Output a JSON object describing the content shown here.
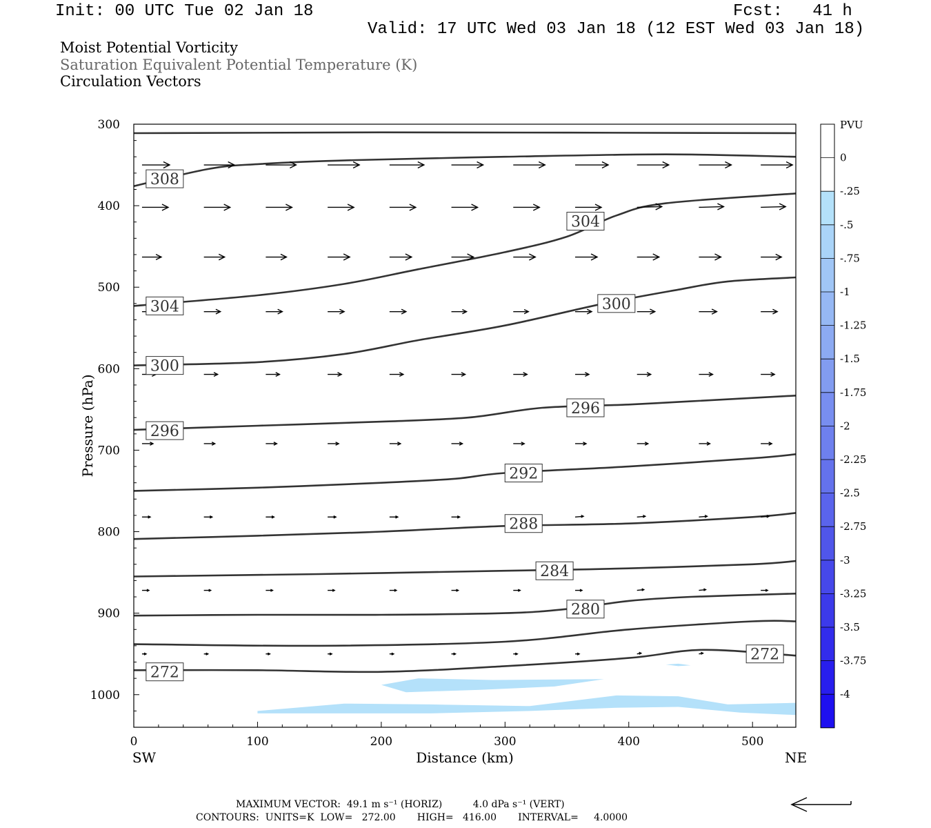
{
  "header": {
    "init": "Init: 00 UTC Tue 02 Jan 18",
    "fcst": "Fcst:   41 h",
    "valid": "Valid: 17 UTC Wed 03 Jan 18 (12 EST Wed 03 Jan 18)"
  },
  "titles": {
    "line1": "Moist Potential Vorticity",
    "line2": "Saturation Equivalent Potential Temperature (K)",
    "line3": "Circulation Vectors"
  },
  "chart_data": {
    "type": "cross-section",
    "xlabel": "Distance (km)",
    "ylabel": "Pressure (hPa)",
    "x_end_labels": {
      "left": "SW",
      "right": "NE"
    },
    "xlim": [
      0,
      535
    ],
    "ylim": [
      300,
      1040
    ],
    "x_ticks": [
      0,
      100,
      200,
      300,
      400,
      500
    ],
    "y_ticks": [
      300,
      400,
      500,
      600,
      700,
      800,
      900,
      1000
    ],
    "colorbar": {
      "unit": "PVU",
      "labels": [
        "0",
        "-.25",
        "-.5",
        "-.75",
        "-1",
        "-1.25",
        "-1.5",
        "-1.75",
        "-2",
        "-2.25",
        "-2.5",
        "-2.75",
        "-3",
        "-3.25",
        "-3.5",
        "-3.75",
        "-4"
      ],
      "colors": [
        "#ffffff",
        "#ffffff",
        "#b4e1fa",
        "#aad4f8",
        "#a0c6f6",
        "#96b8f4",
        "#8caaf2",
        "#829cf0",
        "#788ef0",
        "#6e80ee",
        "#6472ec",
        "#5a64ec",
        "#5056ea",
        "#4648ea",
        "#3c3aea",
        "#322cec",
        "#281eee",
        "#1e10f0"
      ]
    },
    "theta_es_contours": [
      {
        "value": 272,
        "points": [
          [
            0,
            970
          ],
          [
            100,
            970
          ],
          [
            200,
            972
          ],
          [
            300,
            965
          ],
          [
            400,
            955
          ],
          [
            460,
            945
          ],
          [
            535,
            952
          ]
        ],
        "labels": [
          [
            25,
            972
          ],
          [
            510,
            950
          ]
        ]
      },
      {
        "value": 276,
        "points": [
          [
            0,
            938
          ],
          [
            150,
            940
          ],
          [
            300,
            935
          ],
          [
            400,
            920
          ],
          [
            500,
            910
          ],
          [
            535,
            910
          ]
        ],
        "labels": []
      },
      {
        "value": 280,
        "points": [
          [
            0,
            903
          ],
          [
            100,
            902
          ],
          [
            200,
            902
          ],
          [
            300,
            900
          ],
          [
            350,
            895
          ],
          [
            400,
            885
          ],
          [
            450,
            880
          ],
          [
            535,
            876
          ]
        ],
        "labels": [
          [
            365,
            895
          ]
        ]
      },
      {
        "value": 284,
        "points": [
          [
            0,
            855
          ],
          [
            150,
            852
          ],
          [
            300,
            848
          ],
          [
            400,
            845
          ],
          [
            500,
            840
          ],
          [
            535,
            836
          ]
        ],
        "labels": [
          [
            340,
            848
          ]
        ]
      },
      {
        "value": 288,
        "points": [
          [
            0,
            809
          ],
          [
            100,
            805
          ],
          [
            200,
            800
          ],
          [
            300,
            793
          ],
          [
            400,
            790
          ],
          [
            500,
            782
          ],
          [
            535,
            777
          ]
        ],
        "labels": [
          [
            315,
            790
          ]
        ]
      },
      {
        "value": 292,
        "points": [
          [
            0,
            750
          ],
          [
            100,
            746
          ],
          [
            200,
            740
          ],
          [
            260,
            735
          ],
          [
            300,
            728
          ],
          [
            400,
            720
          ],
          [
            500,
            710
          ],
          [
            535,
            705
          ]
        ],
        "labels": [
          [
            315,
            728
          ]
        ]
      },
      {
        "value": 296,
        "points": [
          [
            0,
            675
          ],
          [
            100,
            670
          ],
          [
            200,
            665
          ],
          [
            270,
            660
          ],
          [
            330,
            648
          ],
          [
            400,
            644
          ],
          [
            450,
            640
          ],
          [
            535,
            633
          ]
        ],
        "labels": [
          [
            25,
            676
          ],
          [
            365,
            648
          ]
        ]
      },
      {
        "value": 300,
        "points": [
          [
            0,
            596
          ],
          [
            100,
            592
          ],
          [
            170,
            582
          ],
          [
            230,
            565
          ],
          [
            300,
            547
          ],
          [
            380,
            520
          ],
          [
            440,
            503
          ],
          [
            480,
            493
          ],
          [
            535,
            488
          ]
        ],
        "labels": [
          [
            25,
            596
          ],
          [
            390,
            520
          ]
        ]
      },
      {
        "value": 304,
        "points": [
          [
            0,
            523
          ],
          [
            100,
            510
          ],
          [
            170,
            496
          ],
          [
            230,
            478
          ],
          [
            300,
            457
          ],
          [
            350,
            438
          ],
          [
            390,
            412
          ],
          [
            430,
            397
          ],
          [
            535,
            385
          ]
        ],
        "labels": [
          [
            25,
            523
          ],
          [
            365,
            419
          ]
        ]
      },
      {
        "value": 308,
        "points": [
          [
            0,
            376
          ],
          [
            60,
            355
          ],
          [
            100,
            349
          ],
          [
            180,
            344
          ],
          [
            300,
            340
          ],
          [
            430,
            337
          ],
          [
            535,
            340
          ]
        ],
        "labels": [
          [
            25,
            367
          ]
        ]
      },
      {
        "value": 312,
        "points": [
          [
            0,
            311
          ],
          [
            200,
            310
          ],
          [
            535,
            311
          ]
        ],
        "labels": []
      }
    ],
    "vector_rows": [
      {
        "p": 350,
        "len": [
          40,
          44,
          44,
          46,
          50,
          46,
          46,
          48,
          46,
          47,
          46
        ],
        "dy": [
          0,
          0,
          0,
          0,
          0,
          0,
          0,
          0,
          0,
          0,
          0
        ]
      },
      {
        "p": 402,
        "len": [
          38,
          38,
          38,
          38,
          38,
          38,
          38,
          38,
          36,
          36,
          36
        ],
        "dy": [
          0,
          0,
          0,
          0,
          0,
          0,
          0,
          0,
          -1,
          -1,
          -1
        ]
      },
      {
        "p": 463,
        "len": [
          28,
          30,
          30,
          32,
          32,
          32,
          32,
          32,
          32,
          32,
          30
        ],
        "dy": [
          0,
          0,
          0,
          0,
          0,
          0,
          0,
          0,
          0,
          0,
          0
        ]
      },
      {
        "p": 530,
        "len": [
          24,
          24,
          24,
          24,
          24,
          22,
          22,
          24,
          26,
          26,
          24
        ],
        "dy": [
          0,
          0,
          0,
          0,
          0,
          0,
          0,
          0,
          0,
          0,
          0
        ]
      },
      {
        "p": 607,
        "len": [
          20,
          20,
          20,
          20,
          20,
          20,
          20,
          20,
          20,
          20,
          20
        ],
        "dy": [
          0,
          0,
          0,
          0,
          0,
          0,
          0,
          0,
          0,
          0,
          0
        ]
      },
      {
        "p": 692,
        "len": [
          16,
          16,
          16,
          16,
          16,
          16,
          16,
          16,
          16,
          16,
          16
        ],
        "dy": [
          0,
          0,
          0,
          0,
          0,
          0,
          0,
          0,
          0,
          0,
          0
        ]
      },
      {
        "p": 782,
        "len": [
          12,
          12,
          12,
          12,
          12,
          12,
          12,
          12,
          12,
          12,
          12
        ],
        "dy": [
          0,
          0,
          0,
          0,
          0,
          0,
          0,
          -1,
          -1,
          -1,
          -1
        ]
      },
      {
        "p": 872,
        "len": [
          10,
          10,
          10,
          10,
          10,
          10,
          10,
          10,
          10,
          10,
          10
        ],
        "dy": [
          0,
          0,
          0,
          0,
          0,
          0,
          0,
          0,
          -1,
          -1,
          0
        ]
      },
      {
        "p": 950,
        "len": [
          6,
          6,
          6,
          6,
          6,
          6,
          6,
          6,
          6,
          6,
          6
        ],
        "dy": [
          0,
          0,
          0,
          0,
          0,
          0,
          0,
          0,
          -1,
          -1,
          0
        ]
      }
    ],
    "vector_x": [
      10,
      60,
      110,
      160,
      210,
      260,
      310,
      360,
      410,
      460,
      510
    ],
    "pv_shading": [
      {
        "level": "-.25",
        "points": [
          [
            200,
            988
          ],
          [
            230,
            980
          ],
          [
            290,
            982
          ],
          [
            380,
            981
          ],
          [
            340,
            990
          ],
          [
            280,
            994
          ],
          [
            220,
            997
          ]
        ]
      },
      {
        "level": "-.25",
        "points": [
          [
            100,
            1020
          ],
          [
            170,
            1011
          ],
          [
            240,
            1012
          ],
          [
            320,
            1014
          ],
          [
            390,
            1001
          ],
          [
            440,
            1002
          ],
          [
            480,
            1012
          ],
          [
            535,
            1010
          ],
          [
            535,
            1025
          ],
          [
            490,
            1022
          ],
          [
            440,
            1015
          ],
          [
            390,
            1016
          ],
          [
            320,
            1020
          ],
          [
            240,
            1023
          ],
          [
            170,
            1023
          ],
          [
            100,
            1023
          ]
        ]
      },
      {
        "level": "-.25",
        "points": [
          [
            430,
            963
          ],
          [
            440,
            962
          ],
          [
            450,
            964
          ],
          [
            440,
            965
          ]
        ]
      }
    ]
  },
  "footer": {
    "max_vector": "MAXIMUM VECTOR:  49.1 m s⁻¹ (HORIZ)          4.0 dPa s⁻¹ (VERT)",
    "contours": "CONTOURS:  UNITS=K  LOW=   272.00       HIGH=   416.00       INTERVAL=     4.0000"
  }
}
